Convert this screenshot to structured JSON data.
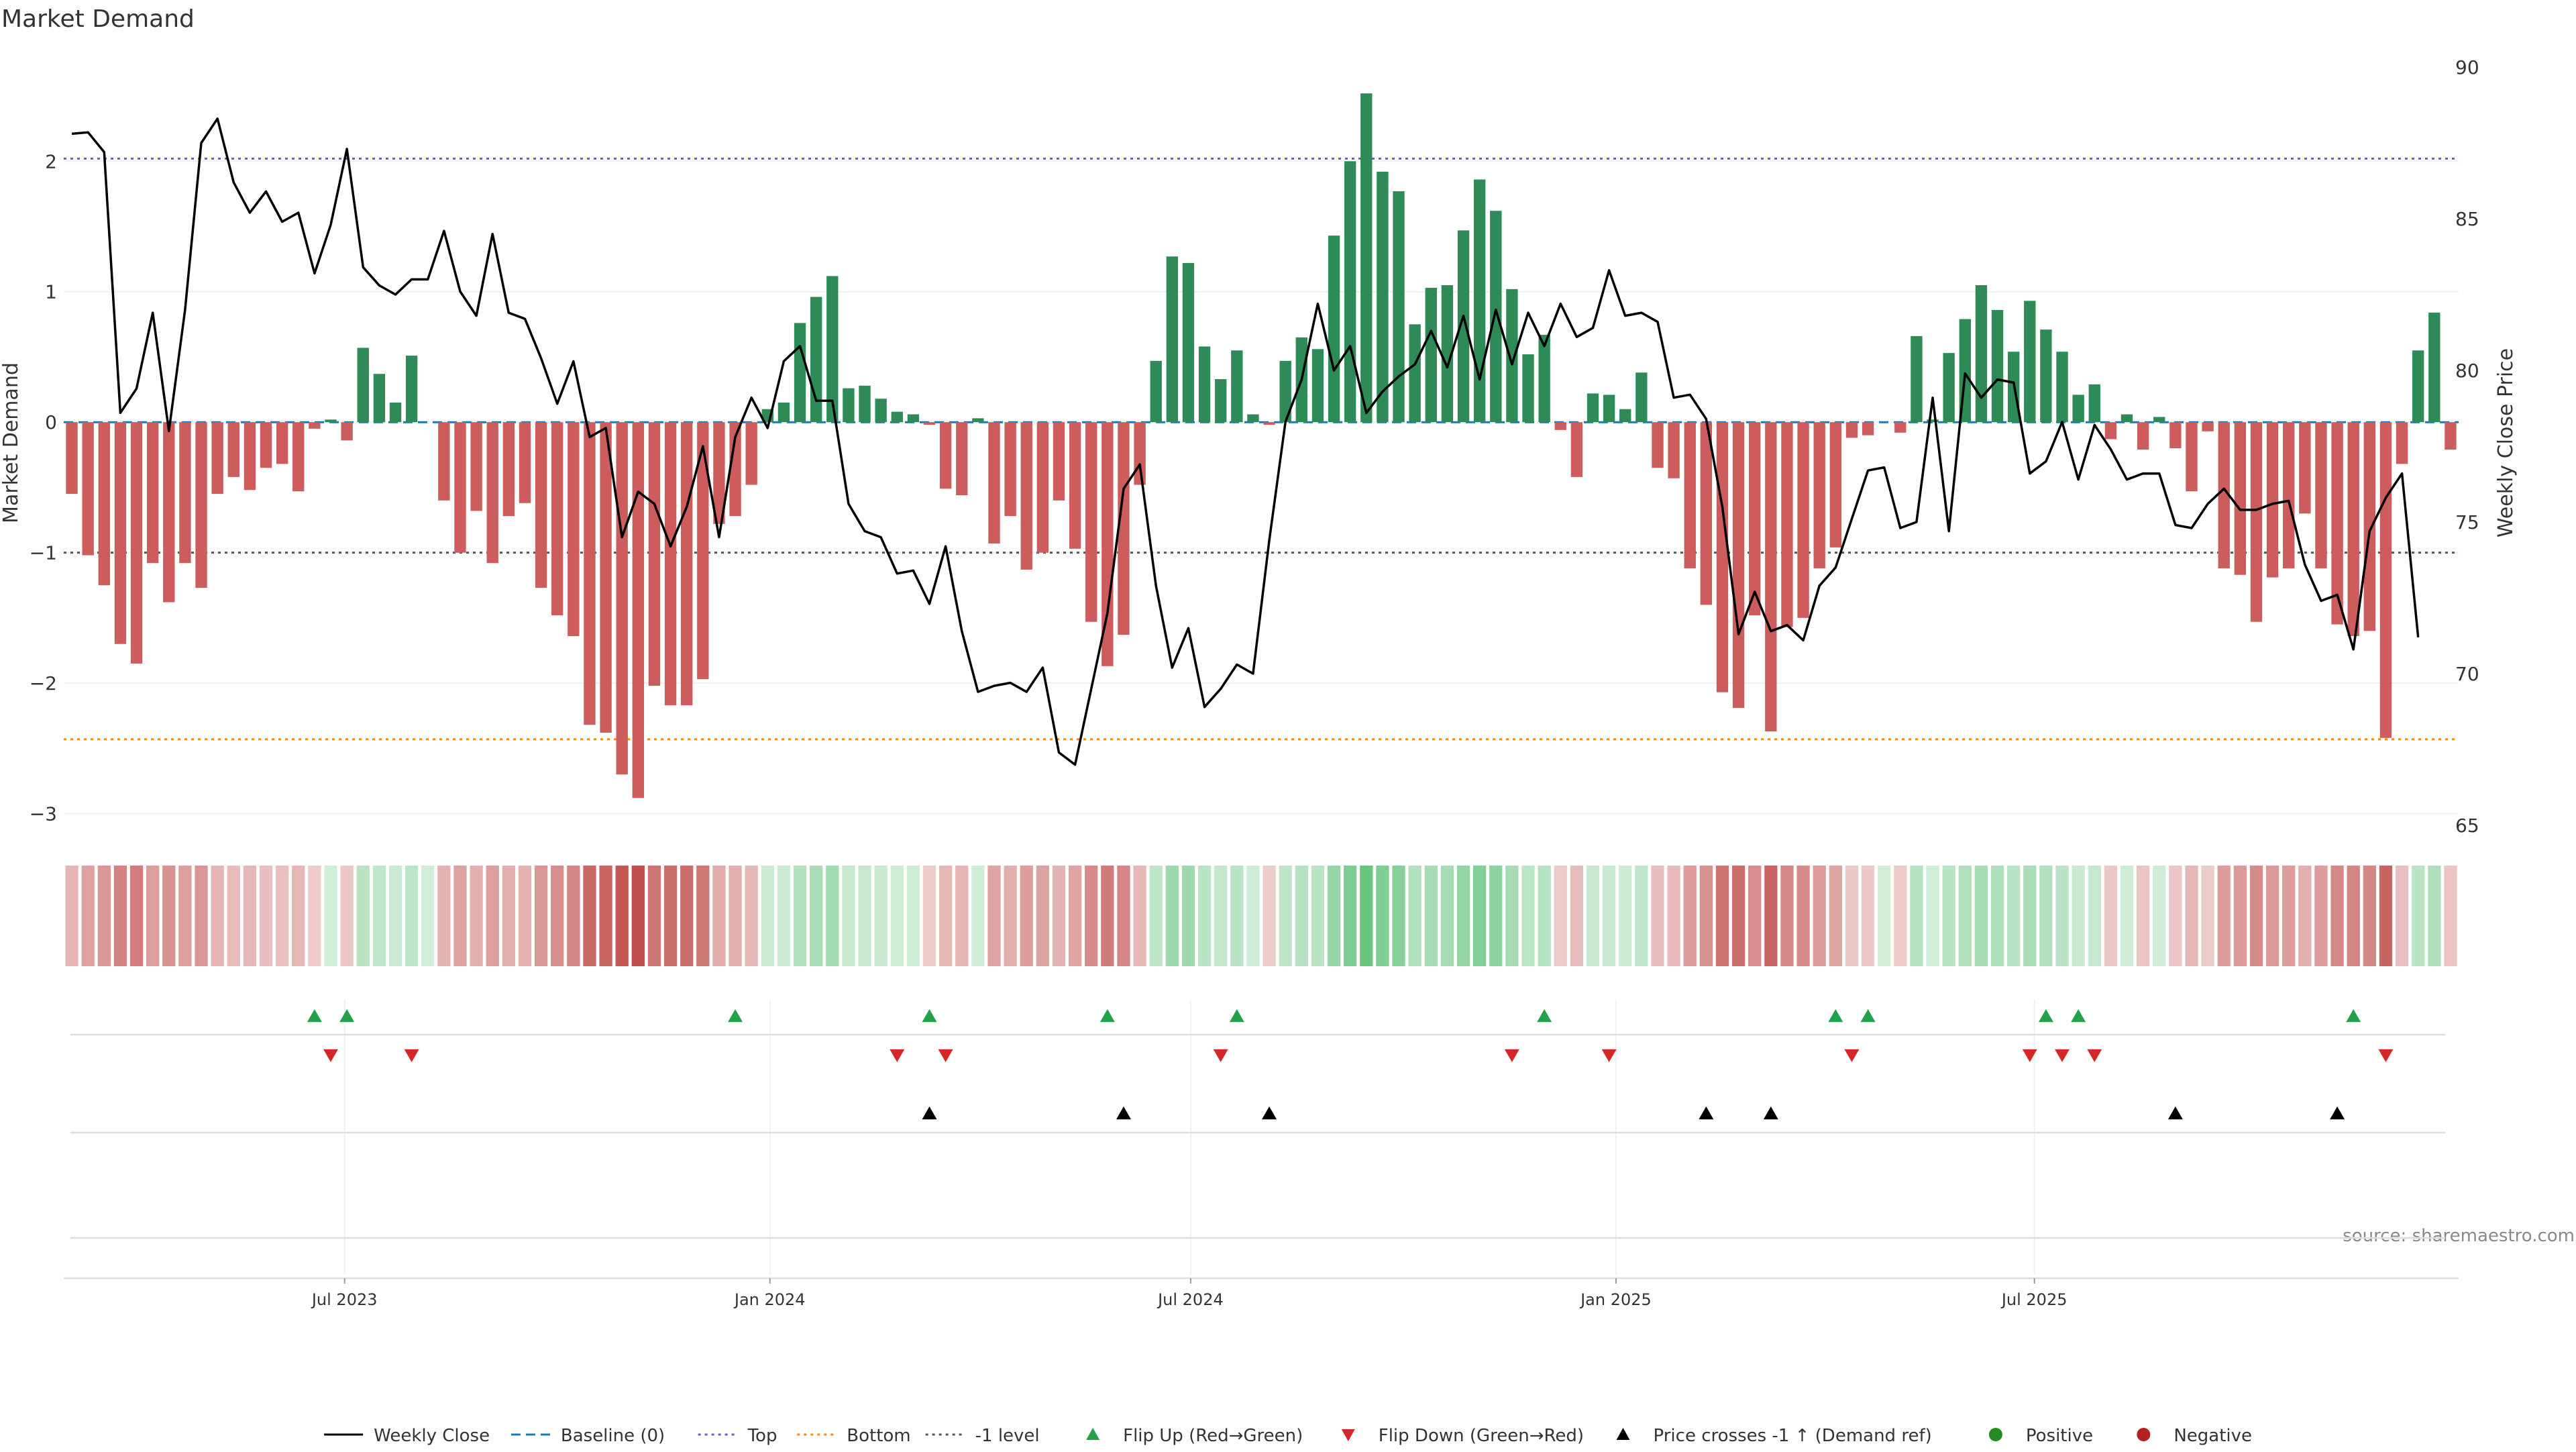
{
  "title": "Market Demand",
  "source": "source: sharemaestro.com",
  "colors": {
    "positive": "#2e8b57",
    "negative": "#cd5c5c",
    "price": "#000000",
    "baseline": "#1f77b4",
    "top": "#6a5acd",
    "bottom": "#ff8c00",
    "minus_one": "#555555",
    "flip_up": "#22a04a",
    "flip_down": "#d62728",
    "cross": "#000000"
  },
  "legend": [
    {
      "label": "Weekly Close",
      "kind": "line-solid",
      "color": "#000000"
    },
    {
      "label": "Baseline (0)",
      "kind": "line-dash",
      "color": "#1f77b4"
    },
    {
      "label": "Top",
      "kind": "line-dot",
      "color": "#6a5acd"
    },
    {
      "label": "Bottom",
      "kind": "line-dot",
      "color": "#ff8c00"
    },
    {
      "label": "-1 level",
      "kind": "line-dot",
      "color": "#555555"
    },
    {
      "label": "Flip Up (Red→Green)",
      "kind": "tri-up",
      "color": "#22a04a"
    },
    {
      "label": "Flip Down (Green→Red)",
      "kind": "tri-down",
      "color": "#d62728"
    },
    {
      "label": "Price crosses -1 ↑ (Demand ref)",
      "kind": "tri-up",
      "color": "#000000"
    },
    {
      "label": "Positive",
      "kind": "dot",
      "color": "#228b22"
    },
    {
      "label": "Negative",
      "kind": "dot",
      "color": "#b22222"
    }
  ],
  "chart_data": {
    "type": "bar",
    "title": "Market Demand",
    "xlabel": "",
    "ylabel": "Market Demand",
    "ylabel_right": "Weekly Close Price",
    "ylim": [
      -3.1,
      2.85
    ],
    "ylim_right": [
      65,
      90
    ],
    "yticks": [
      -3,
      -2,
      -1,
      0,
      1,
      2
    ],
    "yticks_right": [
      65,
      70,
      75,
      80,
      85,
      90
    ],
    "x_start": "2023-03-05",
    "x_step_days": 7,
    "xticks": [
      {
        "label": "Jul 2023",
        "date": "2023-07-01"
      },
      {
        "label": "Jan 2024",
        "date": "2024-01-01"
      },
      {
        "label": "Jul 2024",
        "date": "2024-07-01"
      },
      {
        "label": "Jan 2025",
        "date": "2025-01-01"
      },
      {
        "label": "Jul 2025",
        "date": "2025-07-01"
      }
    ],
    "reference_lines": {
      "baseline": 0,
      "top": 2.02,
      "bottom": -2.43,
      "minus_one": -1
    },
    "series": [
      {
        "name": "Market Demand",
        "type": "bar",
        "values": [
          -0.55,
          -1.02,
          -1.25,
          -1.7,
          -1.85,
          -1.08,
          -1.38,
          -1.08,
          -1.27,
          -0.55,
          -0.42,
          -0.52,
          -0.35,
          -0.32,
          -0.53,
          -0.05,
          0.02,
          -0.14,
          0.57,
          0.37,
          0.15,
          0.51,
          0,
          -0.6,
          -1.0,
          -0.68,
          -1.08,
          -0.72,
          -0.62,
          -1.27,
          -1.48,
          -1.64,
          -2.32,
          -2.38,
          -2.7,
          -2.88,
          -2.02,
          -2.17,
          -2.17,
          -1.97,
          -0.78,
          -0.72,
          -0.48,
          0.1,
          0.15,
          0.76,
          0.96,
          1.12,
          0.26,
          0.28,
          0.18,
          0.08,
          0.06,
          -0.02,
          -0.51,
          -0.56,
          0.03,
          -0.93,
          -0.72,
          -1.13,
          -1.0,
          -0.6,
          -0.97,
          -1.53,
          -1.87,
          -1.63,
          -0.48,
          0.47,
          1.27,
          1.22,
          0.58,
          0.33,
          0.55,
          0.06,
          -0.02,
          0.47,
          0.65,
          0.56,
          1.43,
          2.0,
          2.52,
          1.92,
          1.77,
          0.75,
          1.03,
          1.05,
          1.47,
          1.86,
          1.62,
          1.02,
          0.52,
          0.67,
          -0.06,
          -0.42,
          0.22,
          0.21,
          0.1,
          0.38,
          -0.35,
          -0.43,
          -1.12,
          -1.4,
          -2.07,
          -2.19,
          -1.48,
          -2.37,
          -1.57,
          -1.5,
          -1.12,
          -0.96,
          -0.12,
          -0.1,
          0,
          -0.08,
          0.66,
          0.02,
          0.53,
          0.79,
          1.05,
          0.86,
          0.54,
          0.93,
          0.71,
          0.54,
          0.21,
          0.29,
          -0.13,
          0.06,
          -0.21,
          0.04,
          -0.2,
          -0.53,
          -0.07,
          -1.12,
          -1.17,
          -1.53,
          -1.19,
          -1.12,
          -0.7,
          -1.12,
          -1.55,
          -1.64,
          -1.6,
          -2.42,
          -0.32,
          0.55,
          0.84,
          -0.21
        ]
      },
      {
        "name": "Weekly Close",
        "type": "line",
        "values": [
          87.8,
          87.85,
          87.2,
          78.6,
          79.4,
          81.9,
          78.0,
          82.0,
          87.5,
          88.3,
          86.2,
          85.2,
          85.9,
          84.9,
          85.2,
          83.2,
          84.8,
          87.3,
          83.4,
          82.8,
          82.5,
          83.0,
          83.0,
          84.6,
          82.6,
          81.8,
          84.5,
          81.9,
          81.7,
          80.4,
          78.9,
          80.3,
          77.8,
          78.1,
          74.5,
          76.0,
          75.6,
          74.2,
          75.5,
          77.5,
          74.5,
          77.8,
          79.1,
          78.1,
          80.3,
          80.8,
          79.0,
          79.0,
          75.6,
          74.7,
          74.5,
          73.3,
          73.4,
          72.3,
          74.2,
          71.4,
          69.4,
          69.6,
          69.7,
          69.4,
          70.2,
          67.4,
          67.0,
          69.5,
          72.0,
          76.1,
          76.9,
          72.9,
          70.2,
          71.5,
          68.9,
          69.5,
          70.3,
          70.0,
          74.4,
          78.3,
          79.7,
          82.2,
          80.0,
          80.8,
          78.6,
          79.3,
          79.8,
          80.2,
          81.3,
          80.1,
          81.8,
          79.7,
          82.0,
          80.2,
          81.9,
          80.8,
          82.2,
          81.1,
          81.4,
          83.3,
          81.8,
          81.9,
          81.6,
          79.1,
          79.2,
          78.4,
          75.5,
          71.3,
          72.7,
          71.4,
          71.6,
          71.1,
          72.9,
          73.5,
          75.1,
          76.7,
          76.8,
          74.8,
          75.0,
          79.1,
          74.7,
          79.9,
          79.1,
          79.7,
          79.6,
          76.6,
          77.0,
          78.3,
          76.4,
          78.2,
          77.4,
          76.4,
          76.6,
          76.6,
          74.9,
          74.8,
          75.6,
          76.1,
          75.4,
          75.4,
          75.6,
          75.7,
          73.6,
          72.4,
          72.6,
          70.8,
          74.7,
          75.8,
          76.6,
          71.2
        ]
      }
    ],
    "heat_strip": {
      "values_ref": "Market Demand"
    },
    "events": {
      "flip_up_indices": [
        15,
        17,
        41,
        53,
        64,
        72,
        91,
        109,
        111,
        122,
        124,
        141
      ],
      "flip_down_indices": [
        16,
        21,
        51,
        54,
        71,
        89,
        95,
        110,
        121,
        123,
        125,
        143
      ],
      "price_cross_indices": [
        53,
        65,
        74,
        101,
        105,
        130,
        140
      ]
    }
  }
}
